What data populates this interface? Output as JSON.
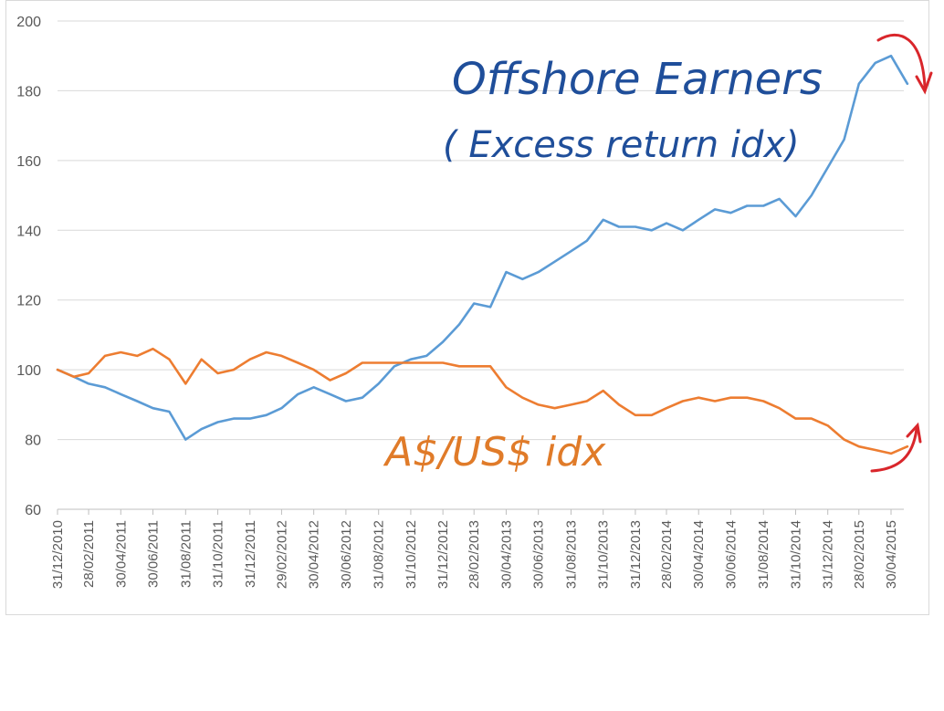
{
  "chart_data": {
    "type": "line",
    "ylim": [
      60,
      200
    ],
    "yticks": [
      60,
      80,
      100,
      120,
      140,
      160,
      180,
      200
    ],
    "x_tick_labels": [
      "31/12/2010",
      "28/02/2011",
      "30/04/2011",
      "30/06/2011",
      "31/08/2011",
      "31/10/2011",
      "31/12/2011",
      "29/02/2012",
      "30/04/2012",
      "30/06/2012",
      "31/08/2012",
      "31/10/2012",
      "31/12/2012",
      "28/02/2013",
      "30/04/2013",
      "30/06/2013",
      "31/08/2013",
      "31/10/2013",
      "31/12/2013",
      "28/02/2014",
      "30/04/2014",
      "30/06/2014",
      "31/08/2014",
      "31/10/2014",
      "31/12/2014",
      "28/02/2015",
      "30/04/2015"
    ],
    "grid": true,
    "legend": "none",
    "series": [
      {
        "color": "#5b9bd5",
        "x": [
          "31/12/2010",
          "31/01/2011",
          "28/02/2011",
          "31/03/2011",
          "30/04/2011",
          "31/05/2011",
          "30/06/2011",
          "31/07/2011",
          "31/08/2011",
          "30/09/2011",
          "31/10/2011",
          "30/11/2011",
          "31/12/2011",
          "31/01/2012",
          "29/02/2012",
          "31/03/2012",
          "30/04/2012",
          "31/05/2012",
          "30/06/2012",
          "31/07/2012",
          "31/08/2012",
          "30/09/2012",
          "31/10/2012",
          "30/11/2012",
          "31/12/2012",
          "31/01/2013",
          "28/02/2013",
          "31/03/2013",
          "30/04/2013",
          "31/05/2013",
          "30/06/2013",
          "31/07/2013",
          "31/08/2013",
          "30/09/2013",
          "31/10/2013",
          "30/11/2013",
          "31/12/2013",
          "31/01/2014",
          "28/02/2014",
          "31/03/2014",
          "30/04/2014",
          "31/05/2014",
          "30/06/2014",
          "31/07/2014",
          "31/08/2014",
          "30/09/2014",
          "31/10/2014",
          "30/11/2014",
          "31/12/2014",
          "31/01/2015",
          "28/02/2015",
          "31/03/2015",
          "30/04/2015",
          "31/05/2015"
        ],
        "values": [
          100,
          98,
          96,
          95,
          93,
          91,
          89,
          88,
          80,
          83,
          85,
          86,
          86,
          87,
          89,
          93,
          95,
          93,
          91,
          92,
          96,
          101,
          103,
          104,
          108,
          113,
          119,
          118,
          128,
          126,
          128,
          131,
          134,
          137,
          143,
          141,
          141,
          140,
          142,
          140,
          143,
          146,
          145,
          147,
          147,
          149,
          144,
          150,
          158,
          166,
          182,
          188,
          190,
          182
        ]
      },
      {
        "color": "#ed7d31",
        "x": [
          "31/12/2010",
          "31/01/2011",
          "28/02/2011",
          "31/03/2011",
          "30/04/2011",
          "31/05/2011",
          "30/06/2011",
          "31/07/2011",
          "31/08/2011",
          "30/09/2011",
          "31/10/2011",
          "30/11/2011",
          "31/12/2011",
          "31/01/2012",
          "29/02/2012",
          "31/03/2012",
          "30/04/2012",
          "31/05/2012",
          "30/06/2012",
          "31/07/2012",
          "31/08/2012",
          "30/09/2012",
          "31/10/2012",
          "30/11/2012",
          "31/12/2012",
          "31/01/2013",
          "28/02/2013",
          "31/03/2013",
          "30/04/2013",
          "31/05/2013",
          "30/06/2013",
          "31/07/2013",
          "31/08/2013",
          "30/09/2013",
          "31/10/2013",
          "30/11/2013",
          "31/12/2013",
          "31/01/2014",
          "28/02/2014",
          "31/03/2014",
          "30/04/2014",
          "31/05/2014",
          "30/06/2014",
          "31/07/2014",
          "31/08/2014",
          "30/09/2014",
          "31/10/2014",
          "30/11/2014",
          "31/12/2014",
          "31/01/2015",
          "28/02/2015",
          "31/03/2015",
          "30/04/2015",
          "31/05/2015"
        ],
        "values": [
          100,
          98,
          99,
          104,
          105,
          104,
          106,
          103,
          96,
          103,
          99,
          100,
          103,
          105,
          104,
          102,
          100,
          97,
          99,
          102,
          102,
          102,
          102,
          102,
          102,
          101,
          101,
          101,
          95,
          92,
          90,
          89,
          90,
          91,
          94,
          90,
          87,
          87,
          89,
          91,
          92,
          91,
          92,
          92,
          91,
          89,
          86,
          86,
          84,
          80,
          78,
          77,
          76,
          78
        ]
      }
    ],
    "annotations": [
      {
        "text": "Offshore Earners",
        "color": "#1f4e9a"
      },
      {
        "text": "( Excess return idx)",
        "color": "#1f4e9a"
      },
      {
        "text": "A$/US$ idx",
        "color": "#e07b29"
      }
    ]
  }
}
